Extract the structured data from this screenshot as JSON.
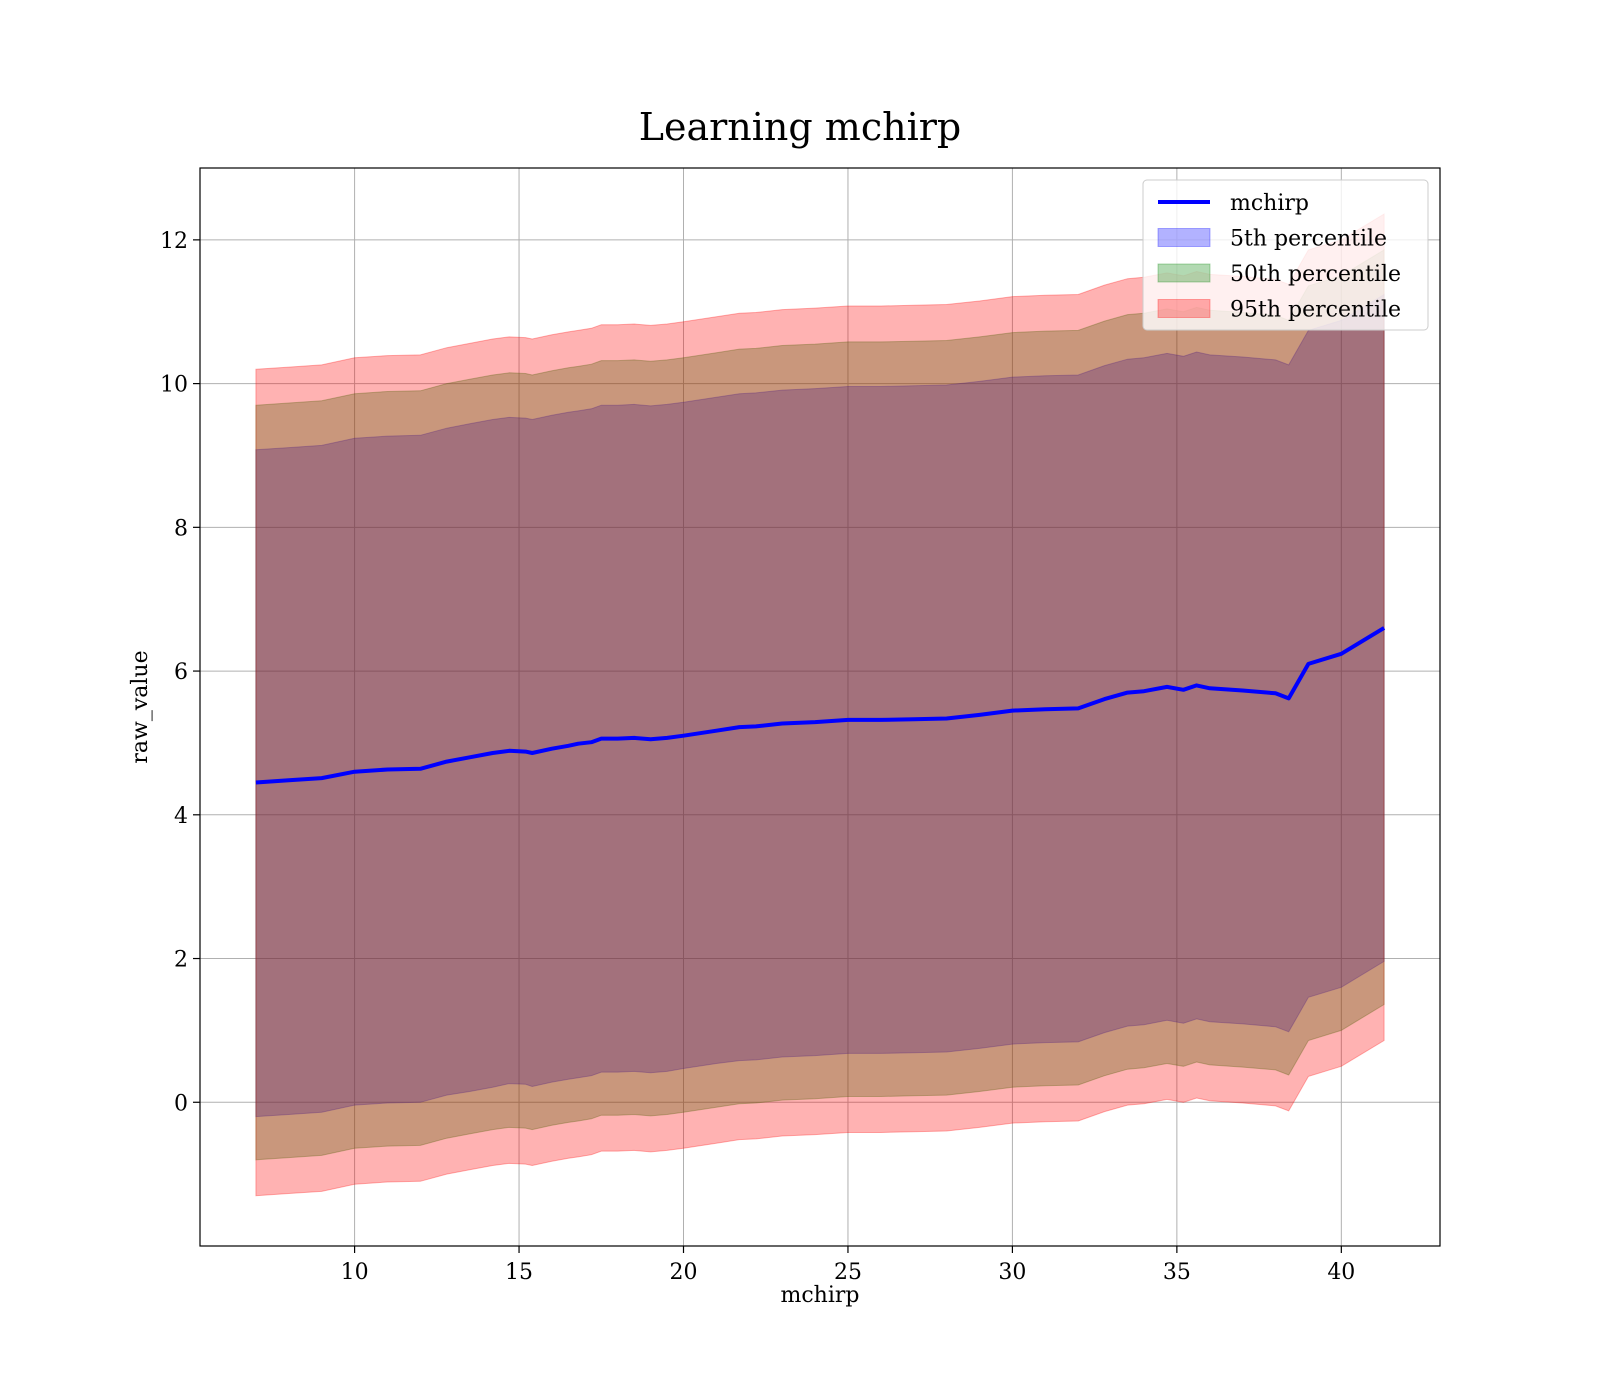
{
  "chart_data": {
    "type": "area",
    "title": "Learning mchirp",
    "xlabel": "mchirp",
    "ylabel": "raw_value",
    "xlim": [
      5.3,
      43.0
    ],
    "ylim": [
      -2.0,
      13.0
    ],
    "xticks": [
      10,
      15,
      20,
      25,
      30,
      35,
      40
    ],
    "yticks": [
      0,
      2,
      4,
      6,
      8,
      10,
      12
    ],
    "grid": true,
    "legend_position": "top-right",
    "x": [
      7.0,
      8.0,
      9.0,
      10.0,
      11.0,
      12.0,
      12.8,
      13.5,
      14.2,
      14.7,
      15.2,
      15.4,
      16.0,
      16.5,
      16.8,
      17.2,
      17.5,
      18.0,
      18.5,
      19.0,
      19.5,
      20.0,
      21.0,
      21.7,
      22.2,
      23.0,
      24.0,
      25.0,
      26.0,
      27.0,
      28.0,
      29.0,
      30.0,
      31.0,
      32.0,
      32.8,
      33.5,
      34.0,
      34.7,
      35.2,
      35.6,
      36.0,
      37.0,
      38.0,
      38.4,
      39.0,
      40.0,
      41.3
    ],
    "series": [
      {
        "name": "mchirp",
        "color": "#0000ff",
        "values": [
          4.45,
          4.48,
          4.51,
          4.6,
          4.63,
          4.64,
          4.74,
          4.8,
          4.86,
          4.89,
          4.88,
          4.86,
          4.92,
          4.96,
          4.99,
          5.01,
          5.06,
          5.06,
          5.07,
          5.05,
          5.07,
          5.1,
          5.17,
          5.22,
          5.23,
          5.27,
          5.29,
          5.32,
          5.32,
          5.33,
          5.34,
          5.39,
          5.45,
          5.47,
          5.48,
          5.61,
          5.7,
          5.72,
          5.78,
          5.74,
          5.8,
          5.76,
          5.73,
          5.69,
          5.62,
          6.1,
          6.24,
          6.6
        ]
      },
      {
        "name": "5th percentile",
        "color": "#0000ff",
        "lower": [
          -0.2,
          -0.17,
          -0.14,
          -0.04,
          -0.01,
          0.0,
          0.1,
          0.15,
          0.21,
          0.26,
          0.25,
          0.22,
          0.28,
          0.32,
          0.34,
          0.37,
          0.42,
          0.42,
          0.43,
          0.41,
          0.43,
          0.47,
          0.54,
          0.58,
          0.59,
          0.63,
          0.65,
          0.68,
          0.68,
          0.69,
          0.7,
          0.75,
          0.81,
          0.83,
          0.84,
          0.97,
          1.06,
          1.08,
          1.14,
          1.1,
          1.16,
          1.12,
          1.09,
          1.05,
          0.98,
          1.46,
          1.6,
          1.96
        ],
        "upper": [
          9.08,
          9.11,
          9.14,
          9.24,
          9.27,
          9.28,
          9.38,
          9.44,
          9.5,
          9.53,
          9.52,
          9.5,
          9.56,
          9.6,
          9.62,
          9.65,
          9.7,
          9.7,
          9.71,
          9.69,
          9.71,
          9.74,
          9.81,
          9.86,
          9.87,
          9.91,
          9.93,
          9.96,
          9.96,
          9.97,
          9.98,
          10.03,
          10.09,
          10.11,
          10.12,
          10.25,
          10.34,
          10.36,
          10.42,
          10.38,
          10.44,
          10.4,
          10.37,
          10.33,
          10.26,
          10.74,
          10.88,
          11.24
        ]
      },
      {
        "name": "50th percentile",
        "color": "#008000",
        "lower": [
          -0.8,
          -0.77,
          -0.74,
          -0.64,
          -0.61,
          -0.6,
          -0.5,
          -0.44,
          -0.38,
          -0.35,
          -0.36,
          -0.38,
          -0.32,
          -0.28,
          -0.26,
          -0.23,
          -0.18,
          -0.18,
          -0.17,
          -0.19,
          -0.17,
          -0.14,
          -0.07,
          -0.02,
          -0.01,
          0.03,
          0.05,
          0.08,
          0.08,
          0.09,
          0.1,
          0.15,
          0.21,
          0.23,
          0.24,
          0.37,
          0.46,
          0.48,
          0.54,
          0.5,
          0.56,
          0.52,
          0.49,
          0.45,
          0.38,
          0.86,
          1.0,
          1.36
        ],
        "upper": [
          9.7,
          9.73,
          9.76,
          9.86,
          9.89,
          9.9,
          10.0,
          10.06,
          10.12,
          10.15,
          10.14,
          10.12,
          10.18,
          10.22,
          10.24,
          10.27,
          10.32,
          10.32,
          10.33,
          10.31,
          10.33,
          10.36,
          10.43,
          10.48,
          10.49,
          10.53,
          10.55,
          10.58,
          10.58,
          10.59,
          10.6,
          10.65,
          10.71,
          10.73,
          10.74,
          10.87,
          10.96,
          10.98,
          11.04,
          11.0,
          11.06,
          11.02,
          10.99,
          10.95,
          10.88,
          11.36,
          11.5,
          11.86
        ]
      },
      {
        "name": "95th percentile",
        "color": "#ff0000",
        "lower": [
          -1.3,
          -1.27,
          -1.24,
          -1.14,
          -1.11,
          -1.1,
          -1.0,
          -0.94,
          -0.88,
          -0.85,
          -0.86,
          -0.88,
          -0.82,
          -0.78,
          -0.76,
          -0.73,
          -0.68,
          -0.68,
          -0.67,
          -0.69,
          -0.67,
          -0.64,
          -0.57,
          -0.52,
          -0.51,
          -0.47,
          -0.45,
          -0.42,
          -0.42,
          -0.41,
          -0.4,
          -0.35,
          -0.29,
          -0.27,
          -0.26,
          -0.13,
          -0.04,
          -0.02,
          0.04,
          0.0,
          0.06,
          0.02,
          -0.01,
          -0.05,
          -0.12,
          0.36,
          0.5,
          0.86
        ],
        "upper": [
          10.2,
          10.23,
          10.26,
          10.36,
          10.39,
          10.4,
          10.5,
          10.56,
          10.62,
          10.65,
          10.64,
          10.62,
          10.68,
          10.72,
          10.74,
          10.77,
          10.82,
          10.82,
          10.83,
          10.81,
          10.83,
          10.86,
          10.93,
          10.98,
          10.99,
          11.03,
          11.05,
          11.08,
          11.08,
          11.09,
          11.1,
          11.15,
          11.21,
          11.23,
          11.24,
          11.37,
          11.46,
          11.48,
          11.54,
          11.5,
          11.56,
          11.52,
          11.49,
          11.45,
          11.38,
          11.86,
          12.0,
          12.36
        ]
      }
    ]
  }
}
